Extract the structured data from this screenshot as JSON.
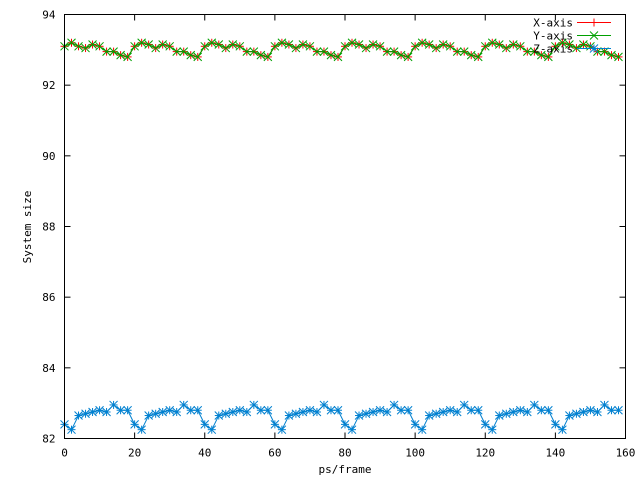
{
  "chart_data": {
    "type": "line",
    "xlabel": "ps/frame",
    "ylabel": "System size",
    "xlim": [
      0,
      160
    ],
    "ylim": [
      82,
      94
    ],
    "x_ticks": [
      0,
      20,
      40,
      60,
      80,
      100,
      120,
      140,
      160
    ],
    "y_ticks": [
      82,
      84,
      86,
      88,
      90,
      92,
      94
    ],
    "grid": false,
    "legend_position": "top-right",
    "x": [
      0,
      2,
      4,
      6,
      8,
      10,
      12,
      14,
      16,
      18,
      20,
      22,
      24,
      26,
      28,
      30,
      32,
      34,
      36,
      38,
      40,
      42,
      44,
      46,
      48,
      50,
      52,
      54,
      56,
      58,
      60,
      62,
      64,
      66,
      68,
      70,
      72,
      74,
      76,
      78,
      80,
      82,
      84,
      86,
      88,
      90,
      92,
      94,
      96,
      98,
      100,
      102,
      104,
      106,
      108,
      110,
      112,
      114,
      116,
      118,
      120,
      122,
      124,
      126,
      128,
      130,
      132,
      134,
      136,
      138,
      140,
      142,
      144,
      146,
      148,
      150,
      152,
      154,
      156,
      158
    ],
    "series": [
      {
        "name": "X-axis",
        "color": "#ff0000",
        "marker": "plus",
        "values": [
          93.1,
          93.2,
          93.1,
          93.05,
          93.15,
          93.1,
          92.95,
          92.95,
          92.85,
          92.8,
          93.1,
          93.2,
          93.15,
          93.05,
          93.15,
          93.1,
          92.95,
          92.95,
          92.85,
          92.8,
          93.1,
          93.2,
          93.15,
          93.05,
          93.15,
          93.1,
          92.95,
          92.95,
          92.85,
          92.8,
          93.1,
          93.2,
          93.15,
          93.05,
          93.15,
          93.1,
          92.95,
          92.95,
          92.85,
          92.8,
          93.1,
          93.2,
          93.15,
          93.05,
          93.15,
          93.1,
          92.95,
          92.95,
          92.85,
          92.8,
          93.1,
          93.2,
          93.15,
          93.05,
          93.15,
          93.1,
          92.95,
          92.95,
          92.85,
          92.8,
          93.1,
          93.2,
          93.15,
          93.05,
          93.15,
          93.1,
          92.95,
          92.95,
          92.85,
          92.8,
          93.1,
          93.2,
          93.15,
          93.05,
          93.15,
          93.1,
          92.95,
          92.95,
          92.85,
          92.8
        ]
      },
      {
        "name": "Y-axis",
        "color": "#00a000",
        "marker": "cross",
        "values": [
          93.1,
          93.2,
          93.1,
          93.05,
          93.15,
          93.1,
          92.95,
          92.95,
          92.85,
          92.8,
          93.1,
          93.2,
          93.15,
          93.05,
          93.15,
          93.1,
          92.95,
          92.95,
          92.85,
          92.8,
          93.1,
          93.2,
          93.15,
          93.05,
          93.15,
          93.1,
          92.95,
          92.95,
          92.85,
          92.8,
          93.1,
          93.2,
          93.15,
          93.05,
          93.15,
          93.1,
          92.95,
          92.95,
          92.85,
          92.8,
          93.1,
          93.2,
          93.15,
          93.05,
          93.15,
          93.1,
          92.95,
          92.95,
          92.85,
          92.8,
          93.1,
          93.2,
          93.15,
          93.05,
          93.15,
          93.1,
          92.95,
          92.95,
          92.85,
          92.8,
          93.1,
          93.2,
          93.15,
          93.05,
          93.15,
          93.1,
          92.95,
          92.95,
          92.85,
          92.8,
          93.1,
          93.2,
          93.15,
          93.05,
          93.15,
          93.1,
          92.95,
          92.95,
          92.85,
          92.8
        ]
      },
      {
        "name": "Z-axis",
        "color": "#0080d0",
        "marker": "star",
        "values": [
          82.4,
          82.25,
          82.65,
          82.7,
          82.75,
          82.8,
          82.75,
          82.95,
          82.8,
          82.8,
          82.4,
          82.25,
          82.65,
          82.7,
          82.75,
          82.8,
          82.75,
          82.95,
          82.8,
          82.8,
          82.4,
          82.25,
          82.65,
          82.7,
          82.75,
          82.8,
          82.75,
          82.95,
          82.8,
          82.8,
          82.4,
          82.25,
          82.65,
          82.7,
          82.75,
          82.8,
          82.75,
          82.95,
          82.8,
          82.8,
          82.4,
          82.25,
          82.65,
          82.7,
          82.75,
          82.8,
          82.75,
          82.95,
          82.8,
          82.8,
          82.4,
          82.25,
          82.65,
          82.7,
          82.75,
          82.8,
          82.75,
          82.95,
          82.8,
          82.8,
          82.4,
          82.25,
          82.65,
          82.7,
          82.75,
          82.8,
          82.75,
          82.95,
          82.8,
          82.8,
          82.4,
          82.25,
          82.65,
          82.7,
          82.75,
          82.8,
          82.75,
          82.95,
          82.8,
          82.8
        ]
      }
    ]
  }
}
